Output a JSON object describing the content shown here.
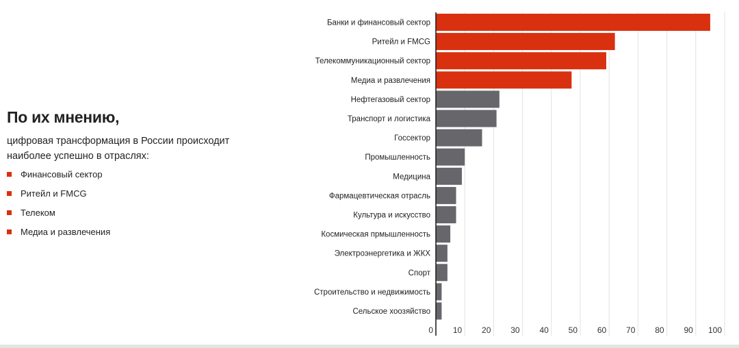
{
  "summary": {
    "title": "По их мнению,",
    "subtitle": "цифровая трансформация в России происходит наиболее успешно в отраслях:",
    "items": [
      "Финансовый сектор",
      "Ритейл и FMCG",
      "Телеком",
      "Медиа и развлечения"
    ]
  },
  "chart_data": {
    "type": "bar",
    "orientation": "horizontal",
    "categories": [
      "Банки и финансовый сектор",
      "Ритейл и FMCG",
      "Телекоммуникационный сектор",
      "Медиа и развлечения",
      "Нефтегазовый сектор",
      "Транспорт и логистика",
      "Госсектор",
      "Промышленность",
      "Медицина",
      "Фармацевтическая отрасль",
      "Культура и искусство",
      "Космическая прмышленность",
      "Электроэнергетика и ЖКХ",
      "Спорт",
      "Строительство и недвижимость",
      "Сельское хоозяйство"
    ],
    "values": [
      95,
      62,
      59,
      47,
      22,
      21,
      16,
      10,
      9,
      7,
      7,
      5,
      4,
      4,
      2,
      2
    ],
    "highlighted": [
      true,
      true,
      true,
      true,
      false,
      false,
      false,
      false,
      false,
      false,
      false,
      false,
      false,
      false,
      false,
      false
    ],
    "xlim": [
      0,
      100
    ],
    "xticks": [
      0,
      10,
      20,
      30,
      40,
      50,
      60,
      70,
      80,
      90,
      100
    ],
    "grid": true,
    "colors": {
      "highlight": "#d9300f",
      "default": "#67666b",
      "grid": "#e2e2e2",
      "axis": "#222222"
    }
  }
}
